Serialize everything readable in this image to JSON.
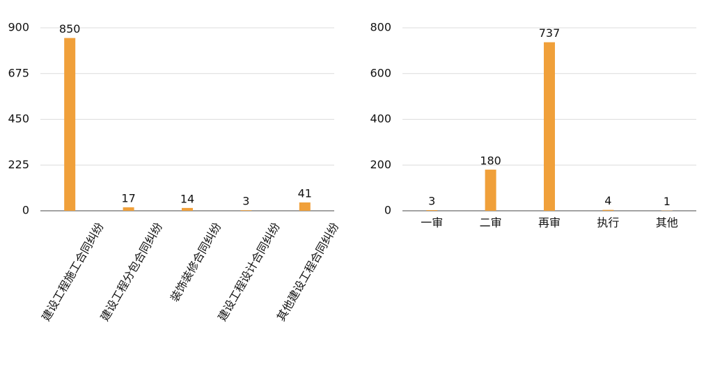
{
  "chart_data": [
    {
      "type": "bar",
      "categories": [
        "建设工程施工合同纠纷",
        "建设工程分包合同纠纷",
        "装饰装修合同纠纷",
        "建设工程设计合同纠纷",
        "其他建设工程合同纠纷"
      ],
      "values": [
        850,
        17,
        14,
        3,
        41
      ],
      "color": "#f0a03a",
      "ylim": [
        0,
        900
      ],
      "yticks": [
        0,
        225,
        450,
        675,
        900
      ],
      "grid": true,
      "rotated_labels": true
    },
    {
      "type": "bar",
      "categories": [
        "一审",
        "二审",
        "再审",
        "执行",
        "其他"
      ],
      "values": [
        3,
        180,
        737,
        4,
        1
      ],
      "color": "#f0a03a",
      "ylim": [
        0,
        800
      ],
      "yticks": [
        0,
        200,
        400,
        600,
        800
      ],
      "grid": true,
      "rotated_labels": false
    }
  ]
}
